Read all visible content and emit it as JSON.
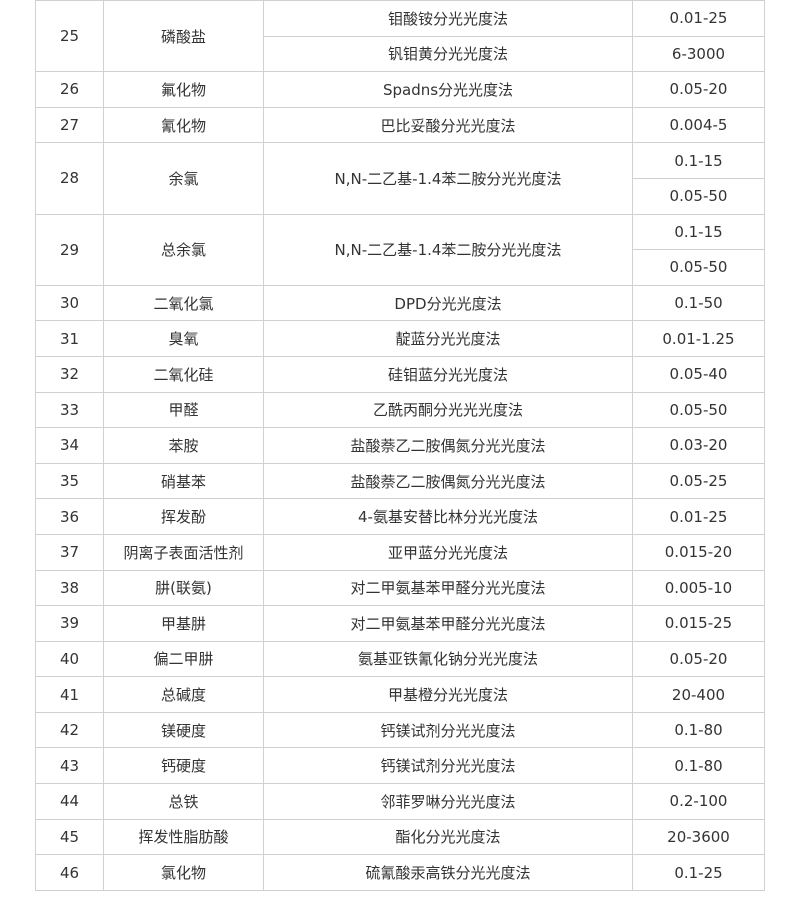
{
  "table": {
    "rows": [
      {
        "id": "25",
        "item": "磷酸盐",
        "methods": [
          {
            "name": "钼酸铵分光光度法",
            "ranges": [
              "0.01-25"
            ]
          },
          {
            "name": "钒钼黄分光光度法",
            "ranges": [
              "6-3000"
            ]
          }
        ]
      },
      {
        "id": "26",
        "item": "氟化物",
        "methods": [
          {
            "name": "Spadns分光光度法",
            "ranges": [
              "0.05-20"
            ]
          }
        ]
      },
      {
        "id": "27",
        "item": "氰化物",
        "methods": [
          {
            "name": "巴比妥酸分光光度法",
            "ranges": [
              "0.004-5"
            ]
          }
        ]
      },
      {
        "id": "28",
        "item": "余氯",
        "methods": [
          {
            "name": "N,N-二乙基-1.4苯二胺分光光度法",
            "ranges": [
              "0.1-15",
              "0.05-50"
            ]
          }
        ]
      },
      {
        "id": "29",
        "item": "总余氯",
        "methods": [
          {
            "name": "N,N-二乙基-1.4苯二胺分光光度法",
            "ranges": [
              "0.1-15",
              "0.05-50"
            ]
          }
        ]
      },
      {
        "id": "30",
        "item": "二氧化氯",
        "methods": [
          {
            "name": "DPD分光光度法",
            "ranges": [
              "0.1-50"
            ]
          }
        ]
      },
      {
        "id": "31",
        "item": "臭氧",
        "methods": [
          {
            "name": "靛蓝分光光度法",
            "ranges": [
              "0.01-1.25"
            ]
          }
        ]
      },
      {
        "id": "32",
        "item": "二氧化硅",
        "methods": [
          {
            "name": "硅钼蓝分光光度法",
            "ranges": [
              "0.05-40"
            ]
          }
        ]
      },
      {
        "id": "33",
        "item": "甲醛",
        "methods": [
          {
            "name": "乙酰丙酮分光光光度法",
            "ranges": [
              "0.05-50"
            ]
          }
        ]
      },
      {
        "id": "34",
        "item": "苯胺",
        "methods": [
          {
            "name": "盐酸萘乙二胺偶氮分光光度法",
            "ranges": [
              "0.03-20"
            ]
          }
        ]
      },
      {
        "id": "35",
        "item": "硝基苯",
        "methods": [
          {
            "name": "盐酸萘乙二胺偶氮分光光度法",
            "ranges": [
              "0.05-25"
            ]
          }
        ]
      },
      {
        "id": "36",
        "item": "挥发酚",
        "methods": [
          {
            "name": "4-氨基安替比林分光光度法",
            "ranges": [
              "0.01-25"
            ]
          }
        ]
      },
      {
        "id": "37",
        "item": "阴离子表面活性剂",
        "methods": [
          {
            "name": "亚甲蓝分光光度法",
            "ranges": [
              "0.015-20"
            ]
          }
        ]
      },
      {
        "id": "38",
        "item": "肼(联氨)",
        "methods": [
          {
            "name": "对二甲氨基苯甲醛分光光度法",
            "ranges": [
              "0.005-10"
            ]
          }
        ]
      },
      {
        "id": "39",
        "item": "甲基肼",
        "methods": [
          {
            "name": "对二甲氨基苯甲醛分光光度法",
            "ranges": [
              "0.015-25"
            ]
          }
        ]
      },
      {
        "id": "40",
        "item": "偏二甲肼",
        "methods": [
          {
            "name": "氨基亚铁氰化钠分光光度法",
            "ranges": [
              "0.05-20"
            ]
          }
        ]
      },
      {
        "id": "41",
        "item": "总碱度",
        "methods": [
          {
            "name": "甲基橙分光光度法",
            "ranges": [
              "20-400"
            ]
          }
        ]
      },
      {
        "id": "42",
        "item": "镁硬度",
        "methods": [
          {
            "name": "钙镁试剂分光光度法",
            "ranges": [
              "0.1-80"
            ]
          }
        ]
      },
      {
        "id": "43",
        "item": "钙硬度",
        "methods": [
          {
            "name": "钙镁试剂分光光度法",
            "ranges": [
              "0.1-80"
            ]
          }
        ]
      },
      {
        "id": "44",
        "item": "总铁",
        "methods": [
          {
            "name": "邻菲罗啉分光光度法",
            "ranges": [
              "0.2-100"
            ]
          }
        ]
      },
      {
        "id": "45",
        "item": "挥发性脂肪酸",
        "methods": [
          {
            "name": "酯化分光光度法",
            "ranges": [
              "20-3600"
            ]
          }
        ]
      },
      {
        "id": "46",
        "item": "氯化物",
        "methods": [
          {
            "name": "硫氰酸汞高铁分光光度法",
            "ranges": [
              "0.1-25"
            ]
          }
        ]
      }
    ]
  }
}
